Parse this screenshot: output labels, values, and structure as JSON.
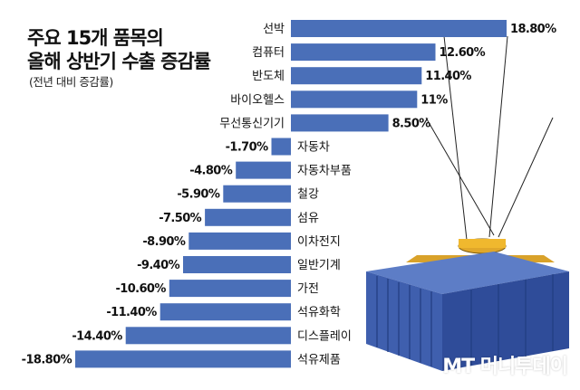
{
  "title_line1": "주요 15개 품목의",
  "title_line2": "올해 상반기 수출 증감률",
  "subtitle": "(전년 대비 증감률)",
  "watermark": "MT 머니투데이",
  "colors": {
    "bar": "#4a6fb8",
    "text": "#111111"
  },
  "chart_data": {
    "type": "bar",
    "orientation": "horizontal",
    "unit": "%",
    "categories": [
      "선박",
      "컴퓨터",
      "반도체",
      "바이오헬스",
      "무선통신기기",
      "자동차",
      "자동차부품",
      "철강",
      "섬유",
      "이차전지",
      "일반기계",
      "가전",
      "석유화학",
      "디스플레이",
      "석유제품"
    ],
    "values": [
      18.8,
      12.6,
      11.4,
      11,
      8.5,
      -1.7,
      -4.8,
      -5.9,
      -7.5,
      -8.9,
      -9.4,
      -10.6,
      -11.4,
      -14.4,
      -18.8
    ],
    "value_labels": [
      "18.80%",
      "12.60%",
      "11.40%",
      "11%",
      "8.50%",
      "-1.70%",
      "-4.80%",
      "-5.90%",
      "-7.50%",
      "-8.90%",
      "-9.40%",
      "-10.60%",
      "-11.40%",
      "-14.40%",
      "-18.80%"
    ],
    "xlim": [
      -18.8,
      18.8
    ],
    "grid": false,
    "legend": "none"
  }
}
